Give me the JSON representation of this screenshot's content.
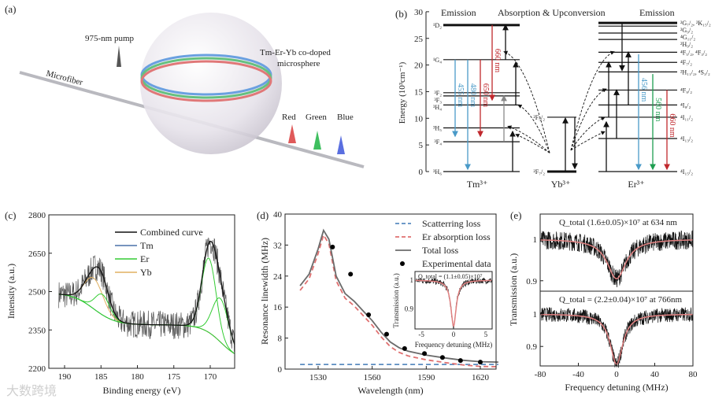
{
  "panel_a": {
    "label": "(a)",
    "pump_label": "975-nm pump",
    "sphere_label_1": "Tm-Er-Yb co-doped",
    "sphere_label_2": "microsphere",
    "fiber_label": "Microfiber",
    "out_red": "Red",
    "out_green": "Green",
    "out_blue": "Blue",
    "colors": {
      "red": "#e05a5a",
      "green": "#3fbf5f",
      "blue": "#5a6fe0"
    }
  },
  "watermark": "大数跨境",
  "chart_data": [
    {
      "id": "b",
      "type": "diagram",
      "label": "(b)",
      "title_left": "Emission",
      "title_mid": "Absorption & Upconversion",
      "title_right": "Emission",
      "ylabel": "Energy (10³cm⁻¹)",
      "ylim": [
        0,
        30
      ],
      "yticks": [
        0,
        5,
        10,
        15,
        20,
        25,
        30
      ],
      "ions": [
        "Tm³⁺",
        "Yb³⁺",
        "Er³⁺"
      ],
      "tm_levels": [
        {
          "name": "¹D₂",
          "E": 27.5,
          "thick": true
        },
        {
          "name": "¹G₄",
          "E": 21
        },
        {
          "name": "³F₂",
          "E": 14.8
        },
        {
          "name": "³F₃",
          "E": 14.2
        },
        {
          "name": "³H₄",
          "E": 12.5
        },
        {
          "name": "³H₅",
          "E": 8.2
        },
        {
          "name": "³F₄",
          "E": 5.6
        },
        {
          "name": "³H₆",
          "E": 0
        }
      ],
      "yb_levels": [
        {
          "name": "²F₅/₂",
          "E": 10.2
        },
        {
          "name": "²F₇/₂",
          "E": 0,
          "thick": true
        }
      ],
      "er_levels": [
        {
          "name": "²G₇/₂, ²K₁₅/₂",
          "E": 27.9,
          "thick": true
        },
        {
          "name": "²G₉/₂",
          "E": 27.3
        },
        {
          "name": "⁴G₁₁/₂",
          "E": 26
        },
        {
          "name": "²H₉/₂",
          "E": 24.8
        },
        {
          "name": "⁴F₅/₂, ⁴F₃/₂",
          "E": 22.4
        },
        {
          "name": "⁴F₇/₂",
          "E": 20.5
        },
        {
          "name": "²H₁₁/₂, ⁴S₃/₂",
          "E": 18.7
        },
        {
          "name": "⁴F₉/₂",
          "E": 15.3
        },
        {
          "name": "⁴I₉/₂",
          "E": 12.5
        },
        {
          "name": "⁴I₁₁/₂",
          "E": 10.2
        },
        {
          "name": "⁴I₁₃/₂",
          "E": 6.2
        },
        {
          "name": "⁴I₁₅/₂",
          "E": 0
        }
      ],
      "emissions": [
        {
          "ion": "Tm",
          "label": "455 nm",
          "from": 21,
          "to": 6.2,
          "color": "#4a9ac8"
        },
        {
          "ion": "Tm",
          "label": "480 nm",
          "from": 21,
          "to": 0,
          "color": "#4a9ac8"
        },
        {
          "ion": "Tm",
          "label": "650 nm",
          "from": 21,
          "to": 6.2,
          "color": "#c0282d"
        },
        {
          "ion": "Tm",
          "label": "660 nm",
          "from": 27.5,
          "to": 13,
          "color": "#c0282d"
        },
        {
          "ion": "Er",
          "label": "456 nm",
          "from": 22,
          "to": 0,
          "color": "#4a9ac8"
        },
        {
          "ion": "Er",
          "label": "560 nm",
          "from": 18.3,
          "to": 0,
          "color": "#1e9e50"
        },
        {
          "ion": "Er",
          "label": "660 nm",
          "from": 15.3,
          "to": 0,
          "color": "#c0282d"
        }
      ]
    },
    {
      "id": "c",
      "type": "line",
      "label": "(c)",
      "xlabel": "Binding energy (eV)",
      "ylabel": "Intensity (a.u.)",
      "xlim": [
        191,
        166.5
      ],
      "ylim": [
        2200,
        2800
      ],
      "xticks": [
        190,
        185,
        180,
        175,
        170
      ],
      "yticks": [
        2200,
        2350,
        2500,
        2650,
        2800
      ],
      "legend_position": "top-right",
      "series": [
        {
          "name": "Combined curve",
          "color": "#111111"
        },
        {
          "name": "Tm",
          "color": "#4a70a8"
        },
        {
          "name": "Er",
          "color": "#33cc33"
        },
        {
          "name": "Yb",
          "color": "#e0b060"
        }
      ],
      "peaks_eV": {
        "Yb": 186,
        "Er": [
          184.8,
          170.2,
          168.6
        ]
      }
    },
    {
      "id": "d",
      "type": "line",
      "label": "(d)",
      "xlabel": "Wavelength (nm)",
      "ylabel": "Resonance linewidth (MHz)",
      "xlim": [
        1520,
        1630
      ],
      "ylim": [
        0,
        40
      ],
      "xticks": [
        1530,
        1560,
        1590,
        1620
      ],
      "yticks": [
        0,
        8,
        16,
        24,
        32,
        40
      ],
      "legend_position": "top-right",
      "series": [
        {
          "name": "Scatterring loss",
          "color": "#5a8cc0",
          "style": "dashed",
          "x": [
            1520,
            1630
          ],
          "y": [
            1.2,
            1.2
          ]
        },
        {
          "name": "Er absorption loss",
          "color": "#e07070",
          "style": "dashed",
          "x": [
            1520,
            1525,
            1530,
            1533,
            1536,
            1540,
            1545,
            1550,
            1555,
            1560,
            1565,
            1570,
            1575,
            1580,
            1590,
            1600,
            1610,
            1620,
            1630
          ],
          "y": [
            20.3,
            23.3,
            29.8,
            34.6,
            32.3,
            22.8,
            18.3,
            16.3,
            13.8,
            11.3,
            8.3,
            5.8,
            4.3,
            3.4,
            2.4,
            1.7,
            1.1,
            0.7,
            0.6
          ]
        },
        {
          "name": "Total loss",
          "color": "#6b6b6b",
          "style": "solid",
          "x": [
            1520,
            1525,
            1530,
            1533,
            1536,
            1540,
            1545,
            1550,
            1555,
            1560,
            1565,
            1570,
            1575,
            1580,
            1590,
            1600,
            1610,
            1620,
            1630
          ],
          "y": [
            21.5,
            24.5,
            31,
            35.8,
            33.5,
            24,
            19.5,
            17.5,
            15,
            12.5,
            9.5,
            7,
            5.5,
            4.6,
            3.6,
            2.9,
            2.3,
            1.9,
            1.8
          ]
        },
        {
          "name": "Experimental data",
          "color": "#000000",
          "style": "points",
          "x": [
            1538,
            1548,
            1558,
            1568,
            1578,
            1589,
            1599,
            1609,
            1620
          ],
          "y": [
            31.5,
            24.5,
            14,
            9,
            5.3,
            4,
            3,
            2.2,
            1.8
          ]
        }
      ],
      "inset": {
        "annotation": "Q_total = (1.1±0.05)×10⁷",
        "xlabel": "Frequency detuning (MHz)",
        "ylabel": "Transmission (a.u.)",
        "xlim": [
          -6,
          6
        ],
        "ylim": [
          0.83,
          1.03
        ],
        "xticks": [
          -5,
          0,
          5
        ],
        "yticks": [
          0.9,
          1.0
        ],
        "dip_depth": 0.16,
        "dip_halfwidth_MHz": 0.5
      }
    },
    {
      "id": "e",
      "type": "line",
      "label": "(e)",
      "xlabel": "Frequency detuning (MHz)",
      "ylabel": "Transmission (a.u.)",
      "xlim": [
        -80,
        80
      ],
      "xticks": [
        -80,
        -40,
        0,
        40,
        80
      ],
      "subplots": [
        {
          "annotation": "Q_total (1.6±0.05)×10⁷ at 634 nm",
          "ylim": [
            0.875,
            1.06
          ],
          "yticks": [
            0.9,
            1.0
          ],
          "dip_depth": 0.095,
          "dip_halfwidth_MHz": 12,
          "fit_color": "#e08080"
        },
        {
          "annotation": "Q_total = (2.2±0.04)×10⁷ at 766nm",
          "ylim": [
            0.84,
            1.07
          ],
          "yticks": [
            0.9,
            1.0
          ],
          "dip_depth": 0.155,
          "dip_halfwidth_MHz": 8,
          "fit_color": "#e08080"
        }
      ]
    }
  ]
}
